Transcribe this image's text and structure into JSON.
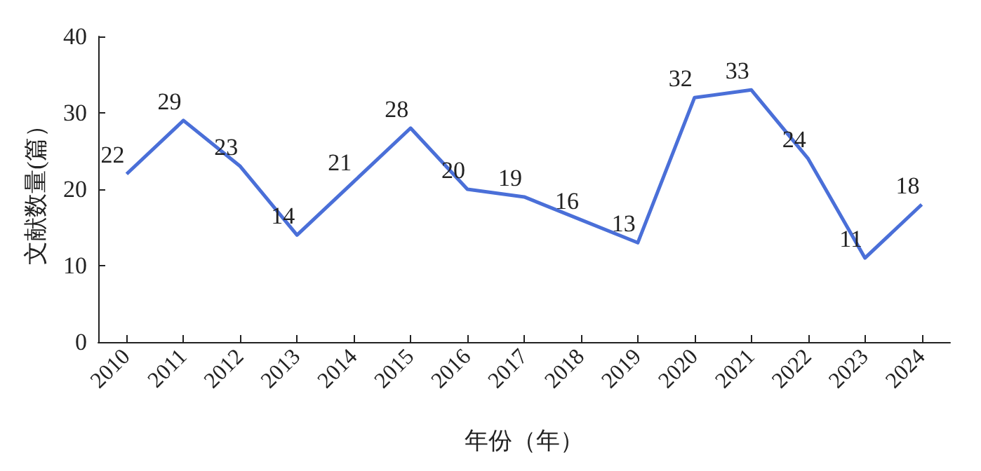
{
  "chart_data": {
    "type": "line",
    "xlabel": "年份（年）",
    "ylabel": "文献数量(篇）",
    "categories": [
      "2010",
      "2011",
      "2012",
      "2013",
      "2014",
      "2015",
      "2016",
      "2017",
      "2018",
      "2019",
      "2020",
      "2021",
      "2022",
      "2023",
      "2024"
    ],
    "series": [
      {
        "color": "#4a6fd8",
        "values": [
          22,
          29,
          23,
          14,
          21,
          28,
          20,
          19,
          16,
          13,
          32,
          33,
          24,
          11,
          18
        ]
      }
    ],
    "ylim": [
      0,
      40
    ],
    "yticks": [
      0,
      10,
      20,
      30,
      40
    ],
    "grid": false,
    "marker": "none",
    "line_style": "solid",
    "data_labels": true
  }
}
